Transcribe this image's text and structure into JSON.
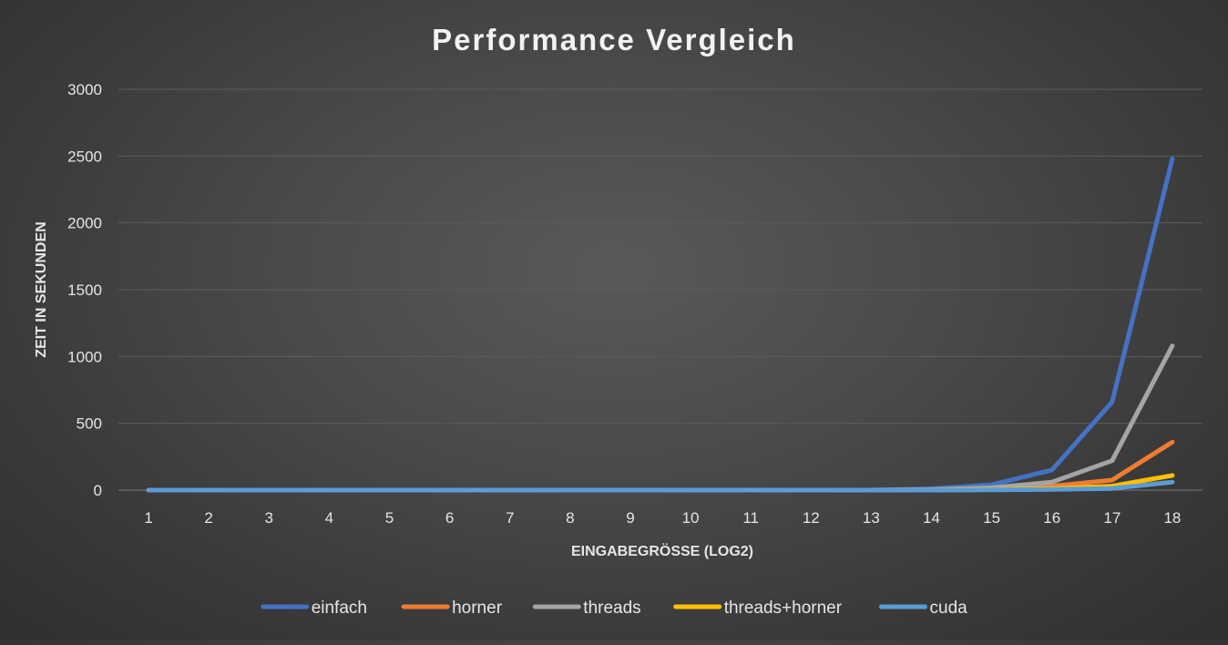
{
  "chart_data": {
    "type": "line",
    "title": "Performance Vergleich",
    "xlabel": "EINGABEGRÖSSE (LOG2)",
    "ylabel": "ZEIT IN SEKUNDEN",
    "categories": [
      "1",
      "2",
      "3",
      "4",
      "5",
      "6",
      "7",
      "8",
      "9",
      "10",
      "11",
      "12",
      "13",
      "14",
      "15",
      "16",
      "17",
      "18"
    ],
    "ylim": [
      0,
      3000
    ],
    "yticks": [
      "0",
      "500",
      "1000",
      "1500",
      "2000",
      "2500",
      "3000"
    ],
    "grid": true,
    "legend_position": "bottom",
    "series": [
      {
        "name": "einfach",
        "color": "#4472C4",
        "values": [
          0,
          0,
          0,
          0,
          0,
          0,
          0,
          0,
          0,
          0,
          0,
          0,
          1,
          10,
          40,
          150,
          660,
          2480
        ]
      },
      {
        "name": "horner",
        "color": "#ED7D31",
        "values": [
          0,
          0,
          0,
          0,
          0,
          0,
          0,
          0,
          0,
          0,
          0,
          0,
          0,
          2,
          8,
          30,
          75,
          360
        ]
      },
      {
        "name": "threads",
        "color": "#A5A5A5",
        "values": [
          0,
          0,
          0,
          0,
          0,
          0,
          0,
          0,
          0,
          0,
          0,
          0,
          0,
          4,
          18,
          60,
          220,
          1080
        ]
      },
      {
        "name": "threads+horner",
        "color": "#FFC000",
        "values": [
          0,
          0,
          0,
          0,
          0,
          0,
          0,
          0,
          0,
          0,
          0,
          0,
          0,
          1,
          4,
          12,
          30,
          110
        ]
      },
      {
        "name": "cuda",
        "color": "#5B9BD5",
        "values": [
          0,
          0,
          0,
          0,
          0,
          0,
          0,
          0,
          0,
          0,
          0,
          0,
          0,
          0,
          2,
          5,
          12,
          60
        ]
      }
    ]
  }
}
